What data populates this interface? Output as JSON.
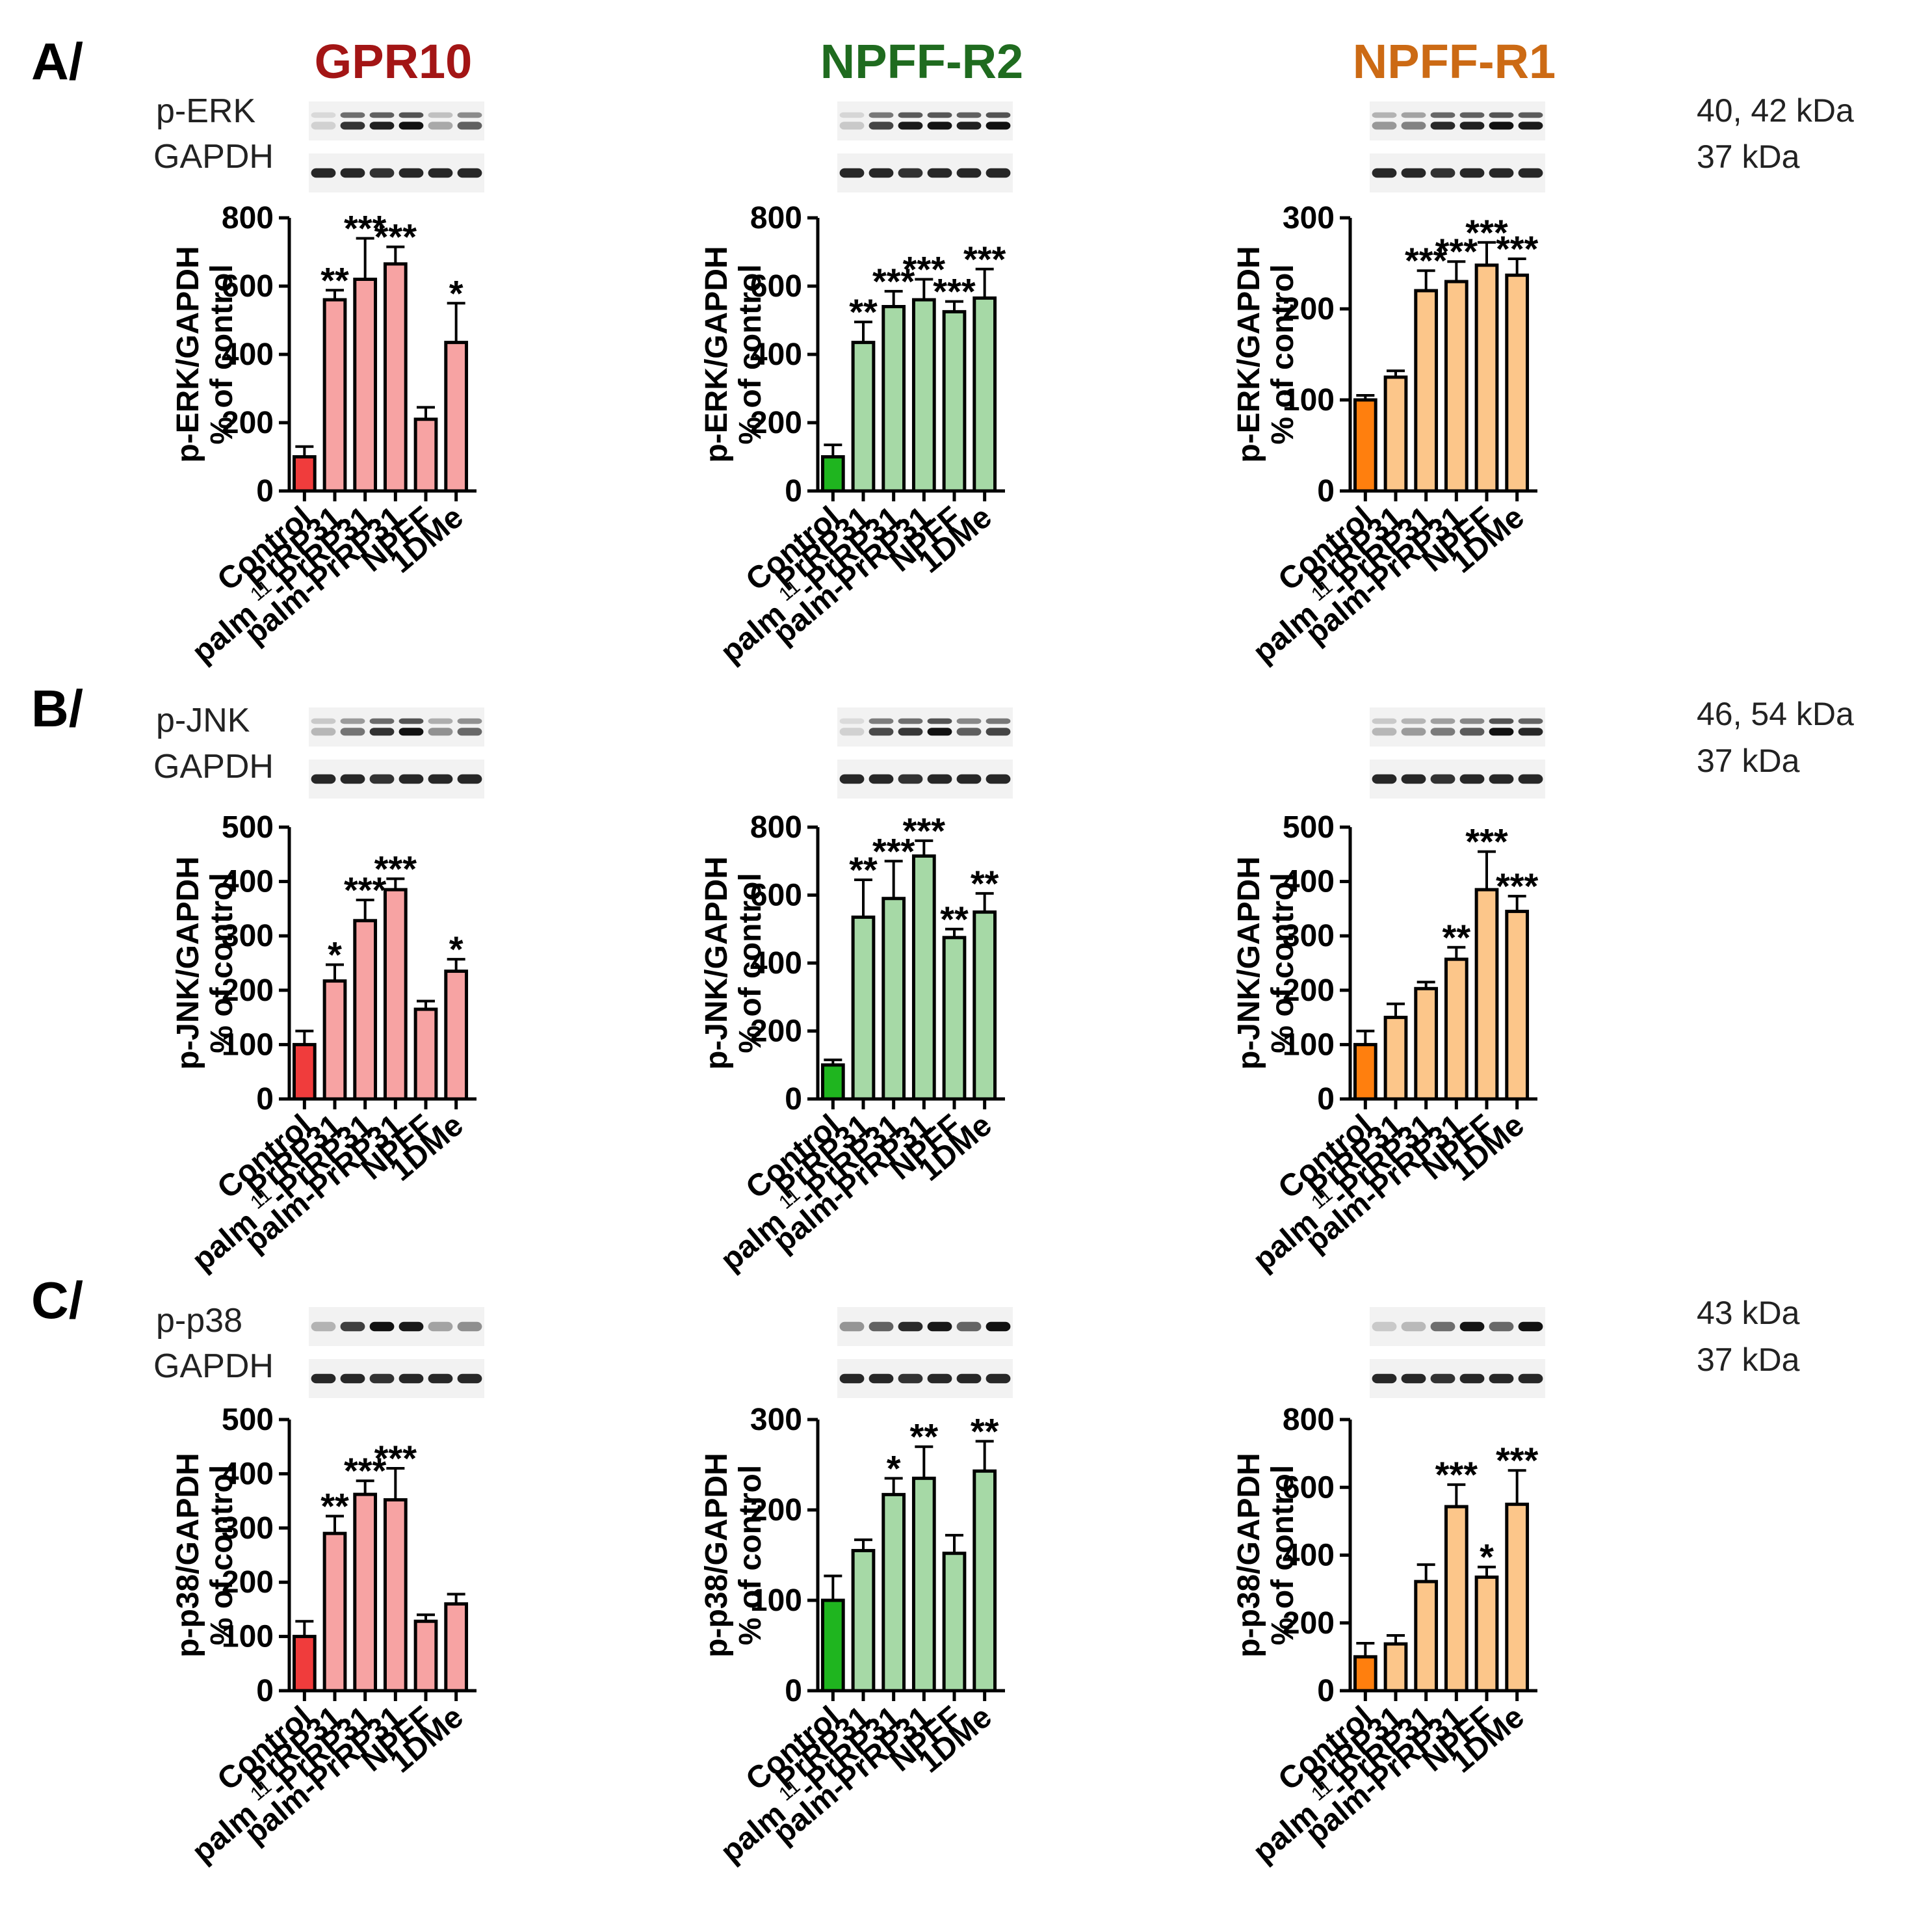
{
  "panels": [
    {
      "label": "A/",
      "marker": "p-ERK",
      "loading": "GAPDH"
    },
    {
      "label": "B/",
      "marker": "p-JNK",
      "loading": "GAPDH"
    },
    {
      "label": "C/",
      "marker": "p-p38",
      "loading": "GAPDH"
    }
  ],
  "receptors": [
    {
      "name": "GPR10",
      "color": "#a31515"
    },
    {
      "name": "NPFF-R2",
      "color": "#1f6b1f"
    },
    {
      "name": "NPFF-R1",
      "color": "#cc6a14"
    }
  ],
  "kda_labels": [
    [
      "40, 42 kDa",
      "37 kDa"
    ],
    [
      "46, 54 kDa",
      "37 kDa"
    ],
    [
      "43 kDa",
      "37 kDa"
    ]
  ],
  "y_label_suffix": "% of control",
  "palm11_text": {
    "pre": "palm",
    "sup": "11",
    "post": "-PrRP31"
  },
  "colors": {
    "GPR10": {
      "control": "#f03c3c",
      "bar": "#f7a3a3"
    },
    "NPFF-R2": {
      "control": "#1fb51f",
      "bar": "#a6d9a6"
    },
    "NPFF-R1": {
      "control": "#ff7f0e",
      "bar": "#fcc68a"
    }
  },
  "chart_data": [
    {
      "type": "bar",
      "panel": "A/",
      "receptor": "GPR10",
      "ylabel": "p-ERK/GAPDH",
      "ylim": [
        0,
        800
      ],
      "yticks": [
        0,
        200,
        400,
        600,
        800
      ],
      "categories": [
        "Control",
        "PrRP31",
        "palm11-PrRP31",
        "palm-PrRP31",
        "NPFF",
        "1DMe"
      ],
      "values": [
        100,
        560,
        620,
        665,
        210,
        435
      ],
      "errors": [
        30,
        28,
        120,
        50,
        35,
        115
      ],
      "significance": [
        "",
        "**",
        "***",
        "***",
        "",
        "*"
      ]
    },
    {
      "type": "bar",
      "panel": "A/",
      "receptor": "NPFF-R2",
      "ylabel": "p-ERK/GAPDH",
      "ylim": [
        0,
        800
      ],
      "yticks": [
        0,
        200,
        400,
        600,
        800
      ],
      "categories": [
        "Control",
        "PrRP31",
        "palm11-PrRP31",
        "palm-PrRP31",
        "NPFF",
        "1DMe"
      ],
      "values": [
        100,
        435,
        540,
        560,
        525,
        565
      ],
      "errors": [
        35,
        60,
        45,
        60,
        30,
        85
      ],
      "significance": [
        "",
        "**",
        "***",
        "***",
        "***",
        "***"
      ]
    },
    {
      "type": "bar",
      "panel": "A/",
      "receptor": "NPFF-R1",
      "ylabel": "p-ERK/GAPDH",
      "ylim": [
        0,
        300
      ],
      "yticks": [
        0,
        100,
        200,
        300
      ],
      "categories": [
        "Control",
        "PrRP31",
        "palm11-PrRP31",
        "palm-PrRP31",
        "NPFF",
        "1DMe"
      ],
      "values": [
        100,
        125,
        220,
        230,
        248,
        237
      ],
      "errors": [
        5,
        7,
        22,
        22,
        25,
        18
      ],
      "significance": [
        "",
        "",
        "***",
        "***",
        "***",
        "***"
      ]
    },
    {
      "type": "bar",
      "panel": "B/",
      "receptor": "GPR10",
      "ylabel": "p-JNK/GAPDH",
      "ylim": [
        0,
        500
      ],
      "yticks": [
        0,
        100,
        200,
        300,
        400,
        500
      ],
      "categories": [
        "Control",
        "PrRP31",
        "palm11-PrRP31",
        "palm-PrRP31",
        "NPFF",
        "1DMe"
      ],
      "values": [
        100,
        217,
        328,
        385,
        165,
        235
      ],
      "errors": [
        25,
        30,
        38,
        20,
        15,
        22
      ],
      "significance": [
        "",
        "*",
        "***",
        "***",
        "",
        "*"
      ]
    },
    {
      "type": "bar",
      "panel": "B/",
      "receptor": "NPFF-R2",
      "ylabel": "p-JNK/GAPDH",
      "ylim": [
        0,
        800
      ],
      "yticks": [
        0,
        200,
        400,
        600,
        800
      ],
      "categories": [
        "Control",
        "PrRP31",
        "palm11-PrRP31",
        "palm-PrRP31",
        "NPFF",
        "1DMe"
      ],
      "values": [
        100,
        535,
        590,
        715,
        475,
        550
      ],
      "errors": [
        15,
        110,
        110,
        45,
        25,
        55
      ],
      "significance": [
        "",
        "**",
        "***",
        "***",
        "**",
        "**"
      ]
    },
    {
      "type": "bar",
      "panel": "B/",
      "receptor": "NPFF-R1",
      "ylabel": "p-JNK/GAPDH",
      "ylim": [
        0,
        500
      ],
      "yticks": [
        0,
        100,
        200,
        300,
        400,
        500
      ],
      "categories": [
        "Control",
        "PrRP31",
        "palm11-PrRP31",
        "palm-PrRP31",
        "NPFF",
        "1DMe"
      ],
      "values": [
        100,
        150,
        203,
        257,
        385,
        345
      ],
      "errors": [
        25,
        25,
        12,
        22,
        70,
        28
      ],
      "significance": [
        "",
        "",
        "",
        "**",
        "***",
        "***"
      ]
    },
    {
      "type": "bar",
      "panel": "C/",
      "receptor": "GPR10",
      "ylabel": "p-p38/GAPDH",
      "ylim": [
        0,
        500
      ],
      "yticks": [
        0,
        100,
        200,
        300,
        400,
        500
      ],
      "categories": [
        "Control",
        "PrRP31",
        "palm11-PrRP31",
        "palm-PrRP31",
        "NPFF",
        "1DMe"
      ],
      "values": [
        100,
        290,
        362,
        352,
        128,
        160
      ],
      "errors": [
        28,
        32,
        25,
        58,
        12,
        18
      ],
      "significance": [
        "",
        "**",
        "***",
        "***",
        "",
        ""
      ]
    },
    {
      "type": "bar",
      "panel": "C/",
      "receptor": "NPFF-R2",
      "ylabel": "p-p38/GAPDH",
      "ylim": [
        0,
        300
      ],
      "yticks": [
        0,
        100,
        200,
        300
      ],
      "categories": [
        "Control",
        "PrRP31",
        "palm11-PrRP31",
        "palm-PrRP31",
        "NPFF",
        "1DMe"
      ],
      "values": [
        100,
        155,
        217,
        235,
        152,
        243
      ],
      "errors": [
        27,
        12,
        18,
        35,
        20,
        33
      ],
      "significance": [
        "",
        "",
        "*",
        "**",
        "",
        "**"
      ]
    },
    {
      "type": "bar",
      "panel": "C/",
      "receptor": "NPFF-R1",
      "ylabel": "p-p38/GAPDH",
      "ylim": [
        0,
        800
      ],
      "yticks": [
        0,
        200,
        400,
        600,
        800
      ],
      "categories": [
        "Control",
        "PrRP31",
        "palm11-PrRP31",
        "palm-PrRP31",
        "NPFF",
        "1DMe"
      ],
      "values": [
        100,
        138,
        322,
        543,
        335,
        550
      ],
      "errors": [
        40,
        25,
        50,
        65,
        30,
        100
      ],
      "significance": [
        "",
        "",
        "",
        "***",
        "*",
        "***"
      ]
    }
  ]
}
